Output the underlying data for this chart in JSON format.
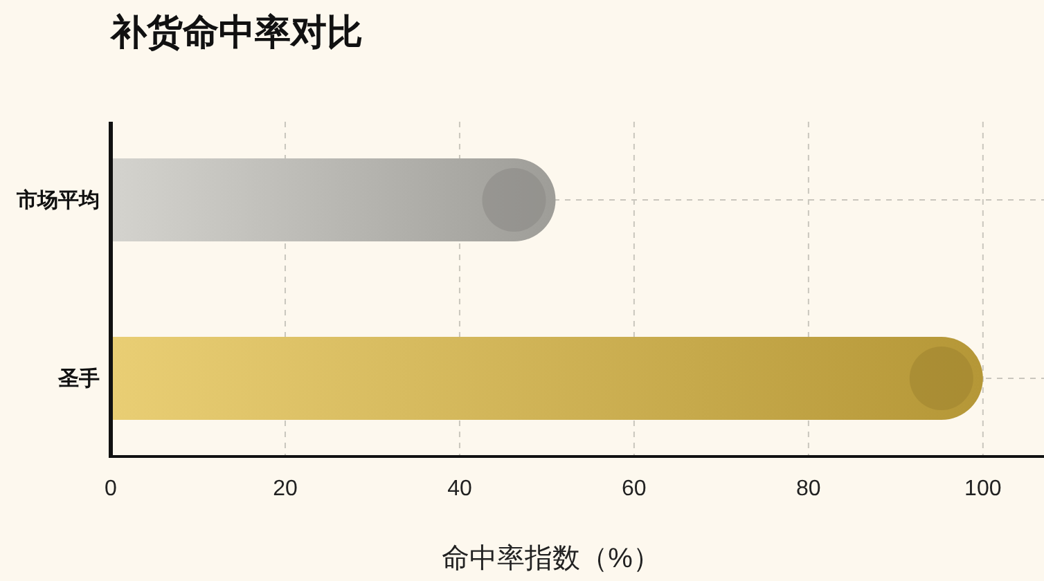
{
  "chart_data": {
    "type": "bar",
    "orientation": "horizontal",
    "title": "补货命中率对比",
    "xlabel": "命中率指数（%）",
    "categories": [
      "市场平均",
      "圣手"
    ],
    "values": [
      51,
      100
    ],
    "colors": [
      "#c6c4be",
      "#e2bd45"
    ],
    "xlim": [
      0,
      107
    ],
    "xticks": [
      0,
      20,
      40,
      60,
      80,
      100
    ],
    "grid": true
  }
}
